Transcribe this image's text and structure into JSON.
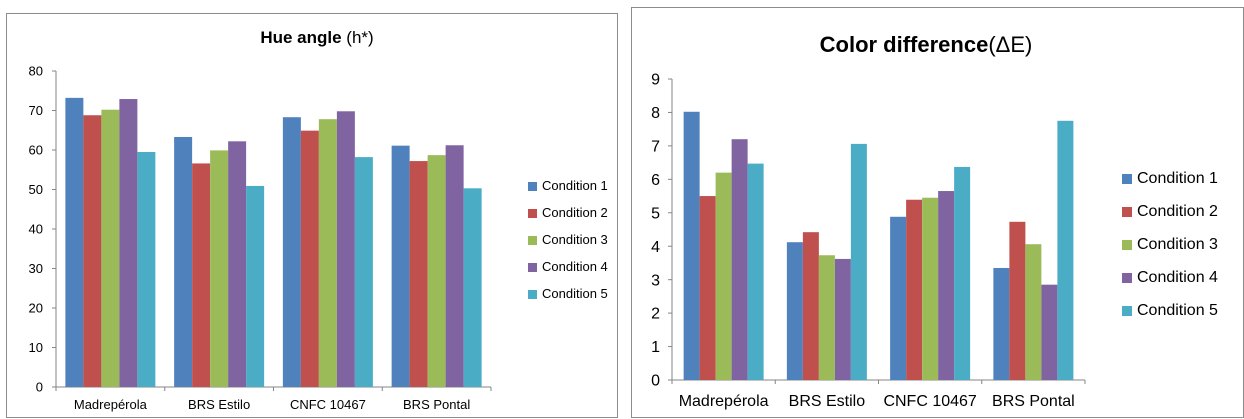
{
  "chart_data": [
    {
      "type": "bar",
      "title_bold": "Hue angle",
      "title_rest": " (h*)",
      "xlabel": "",
      "ylabel": "",
      "ylim": [
        0,
        80
      ],
      "yticks": [
        "0",
        "10",
        "20",
        "30",
        "40",
        "50",
        "60",
        "70",
        "80"
      ],
      "categories": [
        "Madrepérola",
        "BRS Estilo",
        "CNFC 10467",
        "BRS Pontal"
      ],
      "legend_position": "right",
      "grid": false,
      "series": [
        {
          "name": "Condition 1",
          "color": "#4F81BD",
          "values": [
            73.2,
            63.3,
            68.3,
            61.1
          ]
        },
        {
          "name": "Condition 2",
          "color": "#C0504D",
          "values": [
            68.8,
            56.6,
            64.9,
            57.2
          ]
        },
        {
          "name": "Condition 3",
          "color": "#9BBB59",
          "values": [
            70.2,
            59.9,
            67.8,
            58.7
          ]
        },
        {
          "name": "Condition 4",
          "color": "#8064A2",
          "values": [
            72.9,
            62.2,
            69.8,
            61.2
          ]
        },
        {
          "name": "Condition 5",
          "color": "#4BACC6",
          "values": [
            59.5,
            50.9,
            58.2,
            50.3
          ]
        }
      ]
    },
    {
      "type": "bar",
      "title_bold": "Color difference",
      "title_rest": "(ΔE)",
      "xlabel": "",
      "ylabel": "",
      "ylim": [
        0,
        9
      ],
      "yticks": [
        "0",
        "1",
        "2",
        "3",
        "4",
        "5",
        "6",
        "7",
        "8",
        "9"
      ],
      "categories": [
        "Madrepérola",
        "BRS Estilo",
        "CNFC 10467",
        "BRS Pontal"
      ],
      "legend_position": "right",
      "grid": false,
      "series": [
        {
          "name": "Condition 1",
          "color": "#4F81BD",
          "values": [
            8.02,
            4.12,
            4.88,
            3.35
          ]
        },
        {
          "name": "Condition 2",
          "color": "#C0504D",
          "values": [
            5.5,
            4.42,
            5.39,
            4.73
          ]
        },
        {
          "name": "Condition 3",
          "color": "#9BBB59",
          "values": [
            6.2,
            3.73,
            5.45,
            4.06
          ]
        },
        {
          "name": "Condition 4",
          "color": "#8064A2",
          "values": [
            7.2,
            3.62,
            5.65,
            2.85
          ]
        },
        {
          "name": "Condition 5",
          "color": "#4BACC6",
          "values": [
            6.47,
            7.06,
            6.37,
            7.75
          ]
        }
      ]
    }
  ]
}
